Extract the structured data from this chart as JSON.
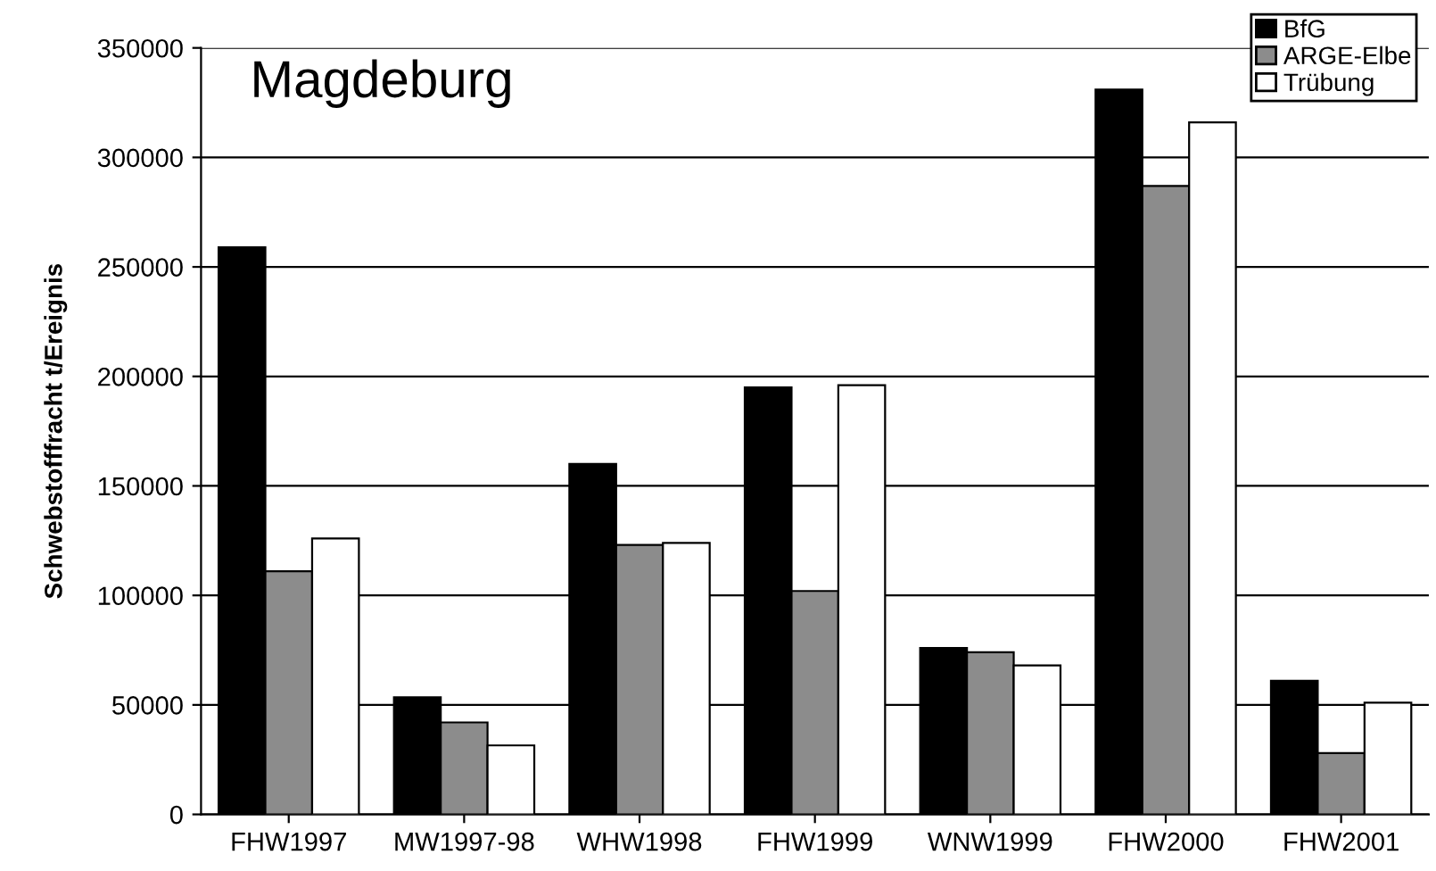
{
  "chart_data": {
    "type": "bar",
    "title": "Magdeburg",
    "ylabel": "Schwebstofffracht t/Ereignis",
    "categories": [
      "FHW1997",
      "MW1997-98",
      "WHW1998",
      "FHW1999",
      "WNW1999",
      "FHW2000",
      "FHW2001"
    ],
    "series": [
      {
        "name": "BfG",
        "color": "#000000",
        "values": [
          259000,
          53500,
          160000,
          195000,
          76000,
          331000,
          61000
        ]
      },
      {
        "name": "ARGE-Elbe",
        "color": "#8c8c8c",
        "values": [
          111000,
          42000,
          123000,
          102000,
          74000,
          287000,
          28000
        ]
      },
      {
        "name": "Trübung",
        "color": "#ffffff",
        "values": [
          126000,
          31500,
          124000,
          196000,
          68000,
          316000,
          51000
        ]
      }
    ],
    "ylim": [
      0,
      350000
    ],
    "yticks": [
      0,
      50000,
      100000,
      150000,
      200000,
      250000,
      300000,
      350000
    ],
    "grid": "y",
    "legend": "top right"
  }
}
